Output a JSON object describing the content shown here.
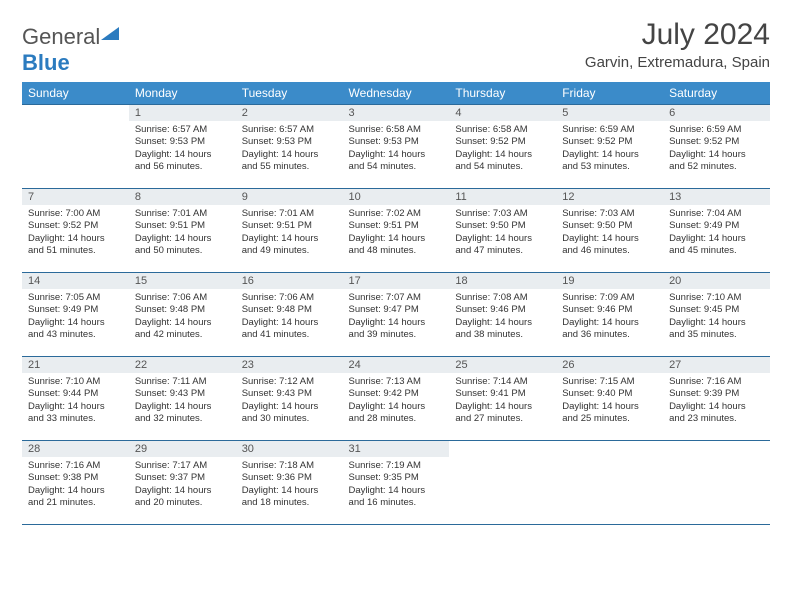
{
  "logo": {
    "part1": "General",
    "part2": "Blue"
  },
  "title": "July 2024",
  "location": "Garvin, Extremadura, Spain",
  "day_headers": [
    "Sunday",
    "Monday",
    "Tuesday",
    "Wednesday",
    "Thursday",
    "Friday",
    "Saturday"
  ],
  "header_bg": "#3b8bc9",
  "header_fg": "#ffffff",
  "daynum_bg": "#e9edf0",
  "rule_color": "#2b6a9a",
  "font_title": 30,
  "font_location": 15,
  "font_dayheader": 12,
  "font_daynum": 11,
  "font_body": 9.5,
  "weeks": [
    [
      {
        "n": "",
        "sr": "",
        "ss": "",
        "dl": ""
      },
      {
        "n": "1",
        "sr": "Sunrise: 6:57 AM",
        "ss": "Sunset: 9:53 PM",
        "dl": "Daylight: 14 hours and 56 minutes."
      },
      {
        "n": "2",
        "sr": "Sunrise: 6:57 AM",
        "ss": "Sunset: 9:53 PM",
        "dl": "Daylight: 14 hours and 55 minutes."
      },
      {
        "n": "3",
        "sr": "Sunrise: 6:58 AM",
        "ss": "Sunset: 9:53 PM",
        "dl": "Daylight: 14 hours and 54 minutes."
      },
      {
        "n": "4",
        "sr": "Sunrise: 6:58 AM",
        "ss": "Sunset: 9:52 PM",
        "dl": "Daylight: 14 hours and 54 minutes."
      },
      {
        "n": "5",
        "sr": "Sunrise: 6:59 AM",
        "ss": "Sunset: 9:52 PM",
        "dl": "Daylight: 14 hours and 53 minutes."
      },
      {
        "n": "6",
        "sr": "Sunrise: 6:59 AM",
        "ss": "Sunset: 9:52 PM",
        "dl": "Daylight: 14 hours and 52 minutes."
      }
    ],
    [
      {
        "n": "7",
        "sr": "Sunrise: 7:00 AM",
        "ss": "Sunset: 9:52 PM",
        "dl": "Daylight: 14 hours and 51 minutes."
      },
      {
        "n": "8",
        "sr": "Sunrise: 7:01 AM",
        "ss": "Sunset: 9:51 PM",
        "dl": "Daylight: 14 hours and 50 minutes."
      },
      {
        "n": "9",
        "sr": "Sunrise: 7:01 AM",
        "ss": "Sunset: 9:51 PM",
        "dl": "Daylight: 14 hours and 49 minutes."
      },
      {
        "n": "10",
        "sr": "Sunrise: 7:02 AM",
        "ss": "Sunset: 9:51 PM",
        "dl": "Daylight: 14 hours and 48 minutes."
      },
      {
        "n": "11",
        "sr": "Sunrise: 7:03 AM",
        "ss": "Sunset: 9:50 PM",
        "dl": "Daylight: 14 hours and 47 minutes."
      },
      {
        "n": "12",
        "sr": "Sunrise: 7:03 AM",
        "ss": "Sunset: 9:50 PM",
        "dl": "Daylight: 14 hours and 46 minutes."
      },
      {
        "n": "13",
        "sr": "Sunrise: 7:04 AM",
        "ss": "Sunset: 9:49 PM",
        "dl": "Daylight: 14 hours and 45 minutes."
      }
    ],
    [
      {
        "n": "14",
        "sr": "Sunrise: 7:05 AM",
        "ss": "Sunset: 9:49 PM",
        "dl": "Daylight: 14 hours and 43 minutes."
      },
      {
        "n": "15",
        "sr": "Sunrise: 7:06 AM",
        "ss": "Sunset: 9:48 PM",
        "dl": "Daylight: 14 hours and 42 minutes."
      },
      {
        "n": "16",
        "sr": "Sunrise: 7:06 AM",
        "ss": "Sunset: 9:48 PM",
        "dl": "Daylight: 14 hours and 41 minutes."
      },
      {
        "n": "17",
        "sr": "Sunrise: 7:07 AM",
        "ss": "Sunset: 9:47 PM",
        "dl": "Daylight: 14 hours and 39 minutes."
      },
      {
        "n": "18",
        "sr": "Sunrise: 7:08 AM",
        "ss": "Sunset: 9:46 PM",
        "dl": "Daylight: 14 hours and 38 minutes."
      },
      {
        "n": "19",
        "sr": "Sunrise: 7:09 AM",
        "ss": "Sunset: 9:46 PM",
        "dl": "Daylight: 14 hours and 36 minutes."
      },
      {
        "n": "20",
        "sr": "Sunrise: 7:10 AM",
        "ss": "Sunset: 9:45 PM",
        "dl": "Daylight: 14 hours and 35 minutes."
      }
    ],
    [
      {
        "n": "21",
        "sr": "Sunrise: 7:10 AM",
        "ss": "Sunset: 9:44 PM",
        "dl": "Daylight: 14 hours and 33 minutes."
      },
      {
        "n": "22",
        "sr": "Sunrise: 7:11 AM",
        "ss": "Sunset: 9:43 PM",
        "dl": "Daylight: 14 hours and 32 minutes."
      },
      {
        "n": "23",
        "sr": "Sunrise: 7:12 AM",
        "ss": "Sunset: 9:43 PM",
        "dl": "Daylight: 14 hours and 30 minutes."
      },
      {
        "n": "24",
        "sr": "Sunrise: 7:13 AM",
        "ss": "Sunset: 9:42 PM",
        "dl": "Daylight: 14 hours and 28 minutes."
      },
      {
        "n": "25",
        "sr": "Sunrise: 7:14 AM",
        "ss": "Sunset: 9:41 PM",
        "dl": "Daylight: 14 hours and 27 minutes."
      },
      {
        "n": "26",
        "sr": "Sunrise: 7:15 AM",
        "ss": "Sunset: 9:40 PM",
        "dl": "Daylight: 14 hours and 25 minutes."
      },
      {
        "n": "27",
        "sr": "Sunrise: 7:16 AM",
        "ss": "Sunset: 9:39 PM",
        "dl": "Daylight: 14 hours and 23 minutes."
      }
    ],
    [
      {
        "n": "28",
        "sr": "Sunrise: 7:16 AM",
        "ss": "Sunset: 9:38 PM",
        "dl": "Daylight: 14 hours and 21 minutes."
      },
      {
        "n": "29",
        "sr": "Sunrise: 7:17 AM",
        "ss": "Sunset: 9:37 PM",
        "dl": "Daylight: 14 hours and 20 minutes."
      },
      {
        "n": "30",
        "sr": "Sunrise: 7:18 AM",
        "ss": "Sunset: 9:36 PM",
        "dl": "Daylight: 14 hours and 18 minutes."
      },
      {
        "n": "31",
        "sr": "Sunrise: 7:19 AM",
        "ss": "Sunset: 9:35 PM",
        "dl": "Daylight: 14 hours and 16 minutes."
      },
      {
        "n": "",
        "sr": "",
        "ss": "",
        "dl": ""
      },
      {
        "n": "",
        "sr": "",
        "ss": "",
        "dl": ""
      },
      {
        "n": "",
        "sr": "",
        "ss": "",
        "dl": ""
      }
    ]
  ]
}
